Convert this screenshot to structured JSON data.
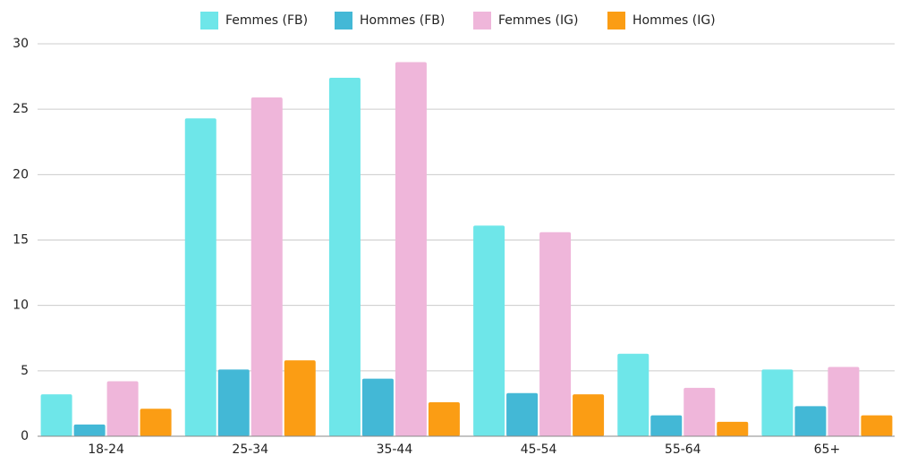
{
  "chart_data": {
    "type": "bar",
    "categories": [
      "18-24",
      "25-34",
      "35-44",
      "45-54",
      "55-64",
      "65+"
    ],
    "series": [
      {
        "name": "Femmes (FB)",
        "color": "#6ee6e9",
        "values": [
          3.2,
          24.3,
          27.4,
          16.1,
          6.3,
          5.1
        ]
      },
      {
        "name": "Hommes (FB)",
        "color": "#43b8d6",
        "values": [
          0.9,
          5.1,
          4.4,
          3.3,
          1.6,
          2.3
        ]
      },
      {
        "name": "Femmes (IG)",
        "color": "#efb6da",
        "values": [
          4.2,
          25.9,
          28.6,
          15.6,
          3.7,
          5.3
        ]
      },
      {
        "name": "Hommes (IG)",
        "color": "#fb9d14",
        "values": [
          2.1,
          5.8,
          2.6,
          3.2,
          1.1,
          1.6
        ]
      }
    ],
    "ylim": [
      0,
      30
    ],
    "yticks": [
      0,
      5,
      10,
      15,
      20,
      25,
      30
    ],
    "grid": true,
    "legend": "top"
  }
}
